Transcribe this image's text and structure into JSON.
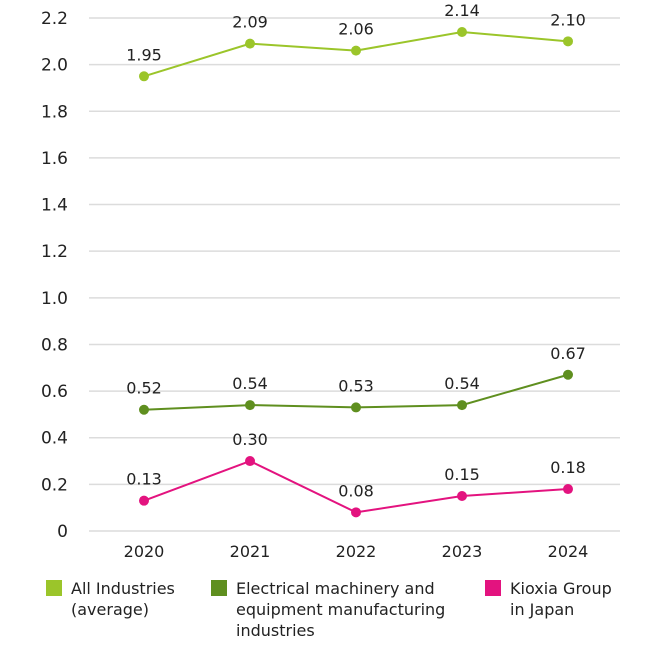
{
  "chart_data": {
    "type": "line",
    "categories": [
      "2020",
      "2021",
      "2022",
      "2023",
      "2024"
    ],
    "ylim": [
      0,
      2.2
    ],
    "yticks": [
      "0",
      "0.2",
      "0.4",
      "0.6",
      "0.8",
      "1.0",
      "1.2",
      "1.4",
      "1.6",
      "1.8",
      "2.0",
      "2.2"
    ],
    "grid": true,
    "legend_position": "bottom",
    "series": [
      {
        "name": "All Industries\n(average)",
        "color": "#9bc52a",
        "values": [
          1.95,
          2.09,
          2.06,
          2.14,
          2.1
        ],
        "labels": [
          "1.95",
          "2.09",
          "2.06",
          "2.14",
          "2.10"
        ]
      },
      {
        "name": "Electrical machinery and\nequipment manufacturing\nindustries",
        "color": "#5f8f1f",
        "values": [
          0.52,
          0.54,
          0.53,
          0.54,
          0.67
        ],
        "labels": [
          "0.52",
          "0.54",
          "0.53",
          "0.54",
          "0.67"
        ]
      },
      {
        "name": "Kioxia Group\nin Japan",
        "color": "#e3137f",
        "values": [
          0.13,
          0.3,
          0.08,
          0.15,
          0.18
        ],
        "labels": [
          "0.13",
          "0.30",
          "0.08",
          "0.15",
          "0.18"
        ]
      }
    ]
  }
}
